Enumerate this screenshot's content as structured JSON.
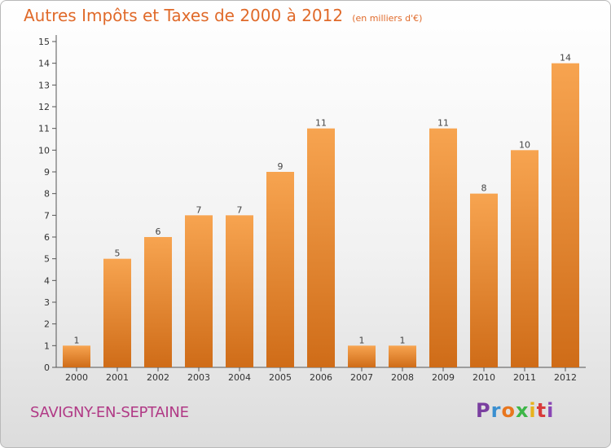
{
  "title": "Autres Impôts et Taxes de 2000 à 2012",
  "unit": "(en milliers d'€)",
  "place": "SAVIGNY-EN-SEPTAINE",
  "brand": "Proxiti",
  "brand_colors": [
    "#7a3fa0",
    "#3a8fd0",
    "#e8761e",
    "#3db648",
    "#e7b21c",
    "#d83b3b",
    "#8a46b5"
  ],
  "colors": {
    "bar_top": "#f7a450",
    "bar_bottom": "#cf6c18",
    "title": "#e06a2a",
    "place": "#b13a86"
  },
  "chart_data": {
    "type": "bar",
    "categories": [
      "2000",
      "2001",
      "2002",
      "2003",
      "2004",
      "2005",
      "2006",
      "2007",
      "2008",
      "2009",
      "2010",
      "2011",
      "2012"
    ],
    "values": [
      1,
      5,
      6,
      7,
      7,
      9,
      11,
      1,
      1,
      11,
      8,
      10,
      14
    ],
    "ylim": [
      0,
      15
    ],
    "yticks": [
      0,
      1,
      2,
      3,
      4,
      5,
      6,
      7,
      8,
      9,
      10,
      11,
      12,
      13,
      14,
      15
    ],
    "grid": false,
    "data_labels": true
  }
}
